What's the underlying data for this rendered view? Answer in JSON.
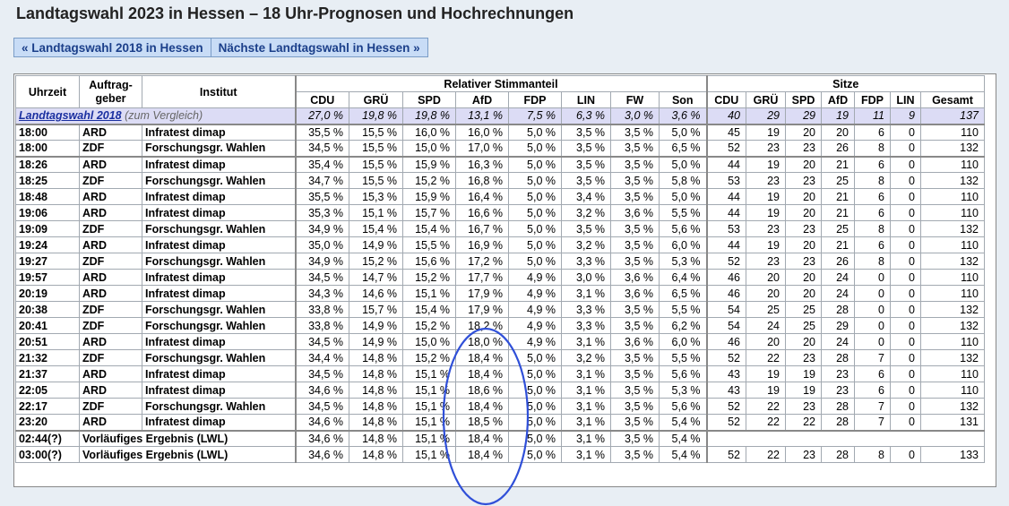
{
  "page": {
    "title": "Landtagswahl 2023 in Hessen – 18 Uhr-Prognosen und Hochrechnungen",
    "nav_prev": "« Landtagswahl 2018 in Hessen",
    "nav_next": "Nächste Landtagswahl in Hessen »"
  },
  "table": {
    "h_time": "Uhrzeit",
    "h_client": "Auftrag-\ngeber",
    "h_client_1": "Auftrag-",
    "h_client_2": "geber",
    "h_inst": "Institut",
    "h_share": "Relativer Stimmanteil",
    "h_seats": "Sitze",
    "parties_pct": [
      "CDU",
      "GRÜ",
      "SPD",
      "AfD",
      "FDP",
      "LIN",
      "FW",
      "Son"
    ],
    "parties_seats": [
      "CDU",
      "GRÜ",
      "SPD",
      "AfD",
      "FDP",
      "LIN",
      "Gesamt"
    ],
    "compare": {
      "label": "Landtagswahl 2018",
      "note": "(zum Vergleich)",
      "pct": [
        "27,0 %",
        "19,8 %",
        "19,8 %",
        "13,1 %",
        "7,5 %",
        "6,3 %",
        "3,0 %",
        "3,6 %"
      ],
      "seats": [
        "40",
        "29",
        "29",
        "19",
        "11",
        "9",
        "137"
      ]
    },
    "rows": [
      {
        "time": "18:00",
        "client": "ARD",
        "inst": "Infratest dimap",
        "pct": [
          "35,5 %",
          "15,5 %",
          "16,0 %",
          "16,0 %",
          "5,0 %",
          "3,5 %",
          "3,5 %",
          "5,0 %"
        ],
        "seats": [
          "45",
          "19",
          "20",
          "20",
          "6",
          "0",
          "110"
        ]
      },
      {
        "time": "18:00",
        "client": "ZDF",
        "inst": "Forschungsgr. Wahlen",
        "pct": [
          "34,5 %",
          "15,5 %",
          "15,0 %",
          "17,0 %",
          "5,0 %",
          "3,5 %",
          "3,5 %",
          "6,5 %"
        ],
        "seats": [
          "52",
          "23",
          "23",
          "26",
          "8",
          "0",
          "132"
        ]
      },
      {
        "time": "18:26",
        "client": "ARD",
        "inst": "Infratest dimap",
        "pct": [
          "35,4 %",
          "15,5 %",
          "15,9 %",
          "16,3 %",
          "5,0 %",
          "3,5 %",
          "3,5 %",
          "5,0 %"
        ],
        "seats": [
          "44",
          "19",
          "20",
          "21",
          "6",
          "0",
          "110"
        ]
      },
      {
        "time": "18:25",
        "client": "ZDF",
        "inst": "Forschungsgr. Wahlen",
        "pct": [
          "34,7 %",
          "15,5 %",
          "15,2 %",
          "16,8 %",
          "5,0 %",
          "3,5 %",
          "3,5 %",
          "5,8 %"
        ],
        "seats": [
          "53",
          "23",
          "23",
          "25",
          "8",
          "0",
          "132"
        ]
      },
      {
        "time": "18:48",
        "client": "ARD",
        "inst": "Infratest dimap",
        "pct": [
          "35,5 %",
          "15,3 %",
          "15,9 %",
          "16,4 %",
          "5,0 %",
          "3,4 %",
          "3,5 %",
          "5,0 %"
        ],
        "seats": [
          "44",
          "19",
          "20",
          "21",
          "6",
          "0",
          "110"
        ]
      },
      {
        "time": "19:06",
        "client": "ARD",
        "inst": "Infratest dimap",
        "pct": [
          "35,3 %",
          "15,1 %",
          "15,7 %",
          "16,6 %",
          "5,0 %",
          "3,2 %",
          "3,6 %",
          "5,5 %"
        ],
        "seats": [
          "44",
          "19",
          "20",
          "21",
          "6",
          "0",
          "110"
        ]
      },
      {
        "time": "19:09",
        "client": "ZDF",
        "inst": "Forschungsgr. Wahlen",
        "pct": [
          "34,9 %",
          "15,4 %",
          "15,4 %",
          "16,7 %",
          "5,0 %",
          "3,5 %",
          "3,5 %",
          "5,6 %"
        ],
        "seats": [
          "53",
          "23",
          "23",
          "25",
          "8",
          "0",
          "132"
        ]
      },
      {
        "time": "19:24",
        "client": "ARD",
        "inst": "Infratest dimap",
        "pct": [
          "35,0 %",
          "14,9 %",
          "15,5 %",
          "16,9 %",
          "5,0 %",
          "3,2 %",
          "3,5 %",
          "6,0 %"
        ],
        "seats": [
          "44",
          "19",
          "20",
          "21",
          "6",
          "0",
          "110"
        ]
      },
      {
        "time": "19:27",
        "client": "ZDF",
        "inst": "Forschungsgr. Wahlen",
        "pct": [
          "34,9 %",
          "15,2 %",
          "15,6 %",
          "17,2 %",
          "5,0 %",
          "3,3 %",
          "3,5 %",
          "5,3 %"
        ],
        "seats": [
          "52",
          "23",
          "23",
          "26",
          "8",
          "0",
          "132"
        ]
      },
      {
        "time": "19:57",
        "client": "ARD",
        "inst": "Infratest dimap",
        "pct": [
          "34,5 %",
          "14,7 %",
          "15,2 %",
          "17,7 %",
          "4,9 %",
          "3,0 %",
          "3,6 %",
          "6,4 %"
        ],
        "seats": [
          "46",
          "20",
          "20",
          "24",
          "0",
          "0",
          "110"
        ]
      },
      {
        "time": "20:19",
        "client": "ARD",
        "inst": "Infratest dimap",
        "pct": [
          "34,3 %",
          "14,6 %",
          "15,1 %",
          "17,9 %",
          "4,9 %",
          "3,1 %",
          "3,6 %",
          "6,5 %"
        ],
        "seats": [
          "46",
          "20",
          "20",
          "24",
          "0",
          "0",
          "110"
        ]
      },
      {
        "time": "20:38",
        "client": "ZDF",
        "inst": "Forschungsgr. Wahlen",
        "pct": [
          "33,8 %",
          "15,7 %",
          "15,4 %",
          "17,9 %",
          "4,9 %",
          "3,3 %",
          "3,5 %",
          "5,5 %"
        ],
        "seats": [
          "54",
          "25",
          "25",
          "28",
          "0",
          "0",
          "132"
        ]
      },
      {
        "time": "20:41",
        "client": "ZDF",
        "inst": "Forschungsgr. Wahlen",
        "pct": [
          "33,8 %",
          "14,9 %",
          "15,2 %",
          "18,2 %",
          "4,9 %",
          "3,3 %",
          "3,5 %",
          "6,2 %"
        ],
        "seats": [
          "54",
          "24",
          "25",
          "29",
          "0",
          "0",
          "132"
        ]
      },
      {
        "time": "20:51",
        "client": "ARD",
        "inst": "Infratest dimap",
        "pct": [
          "34,5 %",
          "14,9 %",
          "15,0 %",
          "18,0 %",
          "4,9 %",
          "3,1 %",
          "3,6 %",
          "6,0 %"
        ],
        "seats": [
          "46",
          "20",
          "20",
          "24",
          "0",
          "0",
          "110"
        ]
      },
      {
        "time": "21:32",
        "client": "ZDF",
        "inst": "Forschungsgr. Wahlen",
        "pct": [
          "34,4 %",
          "14,8 %",
          "15,2 %",
          "18,4 %",
          "5,0 %",
          "3,2 %",
          "3,5 %",
          "5,5 %"
        ],
        "seats": [
          "52",
          "22",
          "23",
          "28",
          "7",
          "0",
          "132"
        ]
      },
      {
        "time": "21:37",
        "client": "ARD",
        "inst": "Infratest dimap",
        "pct": [
          "34,5 %",
          "14,8 %",
          "15,1 %",
          "18,4 %",
          "5,0 %",
          "3,1 %",
          "3,5 %",
          "5,6 %"
        ],
        "seats": [
          "43",
          "19",
          "19",
          "23",
          "6",
          "0",
          "110"
        ]
      },
      {
        "time": "22:05",
        "client": "ARD",
        "inst": "Infratest dimap",
        "pct": [
          "34,6 %",
          "14,8 %",
          "15,1 %",
          "18,6 %",
          "5,0 %",
          "3,1 %",
          "3,5 %",
          "5,3 %"
        ],
        "seats": [
          "43",
          "19",
          "19",
          "23",
          "6",
          "0",
          "110"
        ]
      },
      {
        "time": "22:17",
        "client": "ZDF",
        "inst": "Forschungsgr. Wahlen",
        "pct": [
          "34,5 %",
          "14,8 %",
          "15,1 %",
          "18,4 %",
          "5,0 %",
          "3,1 %",
          "3,5 %",
          "5,6 %"
        ],
        "seats": [
          "52",
          "22",
          "23",
          "28",
          "7",
          "0",
          "132"
        ]
      },
      {
        "time": "23:20",
        "client": "ARD",
        "inst": "Infratest dimap",
        "pct": [
          "34,6 %",
          "14,8 %",
          "15,1 %",
          "18,5 %",
          "5,0 %",
          "3,1 %",
          "3,5 %",
          "5,4 %"
        ],
        "seats": [
          "52",
          "22",
          "22",
          "28",
          "7",
          "0",
          "131"
        ]
      }
    ],
    "results": [
      {
        "time": "02:44(?)",
        "inst": "Vorläufiges Ergebnis (LWL)",
        "pct": [
          "34,6 %",
          "14,8 %",
          "15,1 %",
          "18,4 %",
          "5,0 %",
          "3,1 %",
          "3,5 %",
          "5,4 %"
        ],
        "seats": [
          "",
          "",
          "",
          "",
          "",
          "",
          ""
        ]
      },
      {
        "time": "03:00(?)",
        "inst": "Vorläufiges Ergebnis (LWL)",
        "pct": [
          "34,6 %",
          "14,8 %",
          "15,1 %",
          "18,4 %",
          "5,0 %",
          "3,1 %",
          "3,5 %",
          "5,4 %"
        ],
        "seats": [
          "52",
          "22",
          "23",
          "28",
          "8",
          "0",
          "133"
        ]
      }
    ]
  },
  "annotation": {
    "color": "#2f4fd8"
  }
}
